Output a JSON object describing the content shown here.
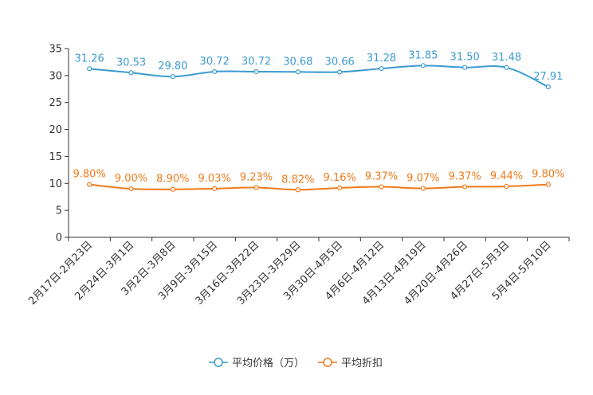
{
  "chart_data": {
    "type": "line",
    "categories": [
      "2月17日-2月23日",
      "2月24日-3月1日",
      "3月2日-3月8日",
      "3月9日-3月15日",
      "3月16日-3月22日",
      "3月23日-3月29日",
      "3月30日-4月5日",
      "4月6日-4月12日",
      "4月13日-4月19日",
      "4月20日-4月26日",
      "4月27日-5月3日",
      "5月4日-5月10日"
    ],
    "ylim": [
      0,
      35
    ],
    "yticks": [
      0,
      5,
      10,
      15,
      20,
      25,
      30,
      35
    ],
    "series": [
      {
        "name": "平均价格（万）",
        "color": "#3a9bd0",
        "values": [
          31.26,
          30.53,
          29.8,
          30.72,
          30.72,
          30.68,
          30.66,
          31.28,
          31.85,
          31.5,
          31.48,
          27.91
        ],
        "labels": [
          "31.26",
          "30.53",
          "29.80",
          "30.72",
          "30.72",
          "30.68",
          "30.66",
          "31.28",
          "31.85",
          "31.50",
          "31.48",
          "27.91"
        ]
      },
      {
        "name": "平均折扣",
        "color": "#f07a1a",
        "values": [
          9.8,
          9.0,
          8.9,
          9.03,
          9.23,
          8.82,
          9.16,
          9.37,
          9.07,
          9.37,
          9.44,
          9.8
        ],
        "labels": [
          "9.80%",
          "9.00%",
          "8.90%",
          "9.03%",
          "9.23%",
          "8.82%",
          "9.16%",
          "9.37%",
          "9.07%",
          "9.37%",
          "9.44%",
          "9.80%"
        ]
      }
    ]
  }
}
